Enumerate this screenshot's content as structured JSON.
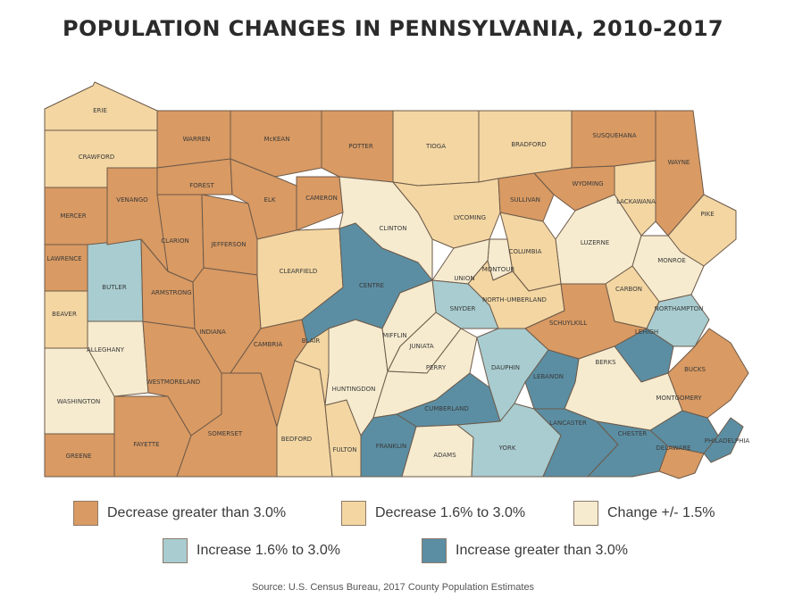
{
  "title": "POPULATION CHANGES IN PENNSYLVANIA, 2010-2017",
  "source": "Source: U.S. Census Bureau, 2017 County Population Estimates",
  "colors": {
    "decrease_gt3": "#d99a63",
    "decrease_1_6_3": "#f3d6a2",
    "change_1_5": "#f6ebcf",
    "increase_1_6_3": "#a8ccd0",
    "increase_gt3": "#5b8ea3"
  },
  "legend": [
    {
      "key": "decrease_gt3",
      "label": "Decrease greater than 3.0%"
    },
    {
      "key": "decrease_1_6_3",
      "label": "Decrease 1.6% to 3.0%"
    },
    {
      "key": "change_1_5",
      "label": "Change +/- 1.5%"
    },
    {
      "key": "increase_1_6_3",
      "label": "Increase 1.6% to 3.0%"
    },
    {
      "key": "increase_gt3",
      "label": "Increase greater than 3.0%"
    }
  ],
  "counties": [
    {
      "name": "ERIE",
      "category": "decrease_1_6_3"
    },
    {
      "name": "CRAWFORD",
      "category": "decrease_1_6_3"
    },
    {
      "name": "MERCER",
      "category": "decrease_gt3"
    },
    {
      "name": "LAWRENCE",
      "category": "decrease_gt3"
    },
    {
      "name": "BEAVER",
      "category": "decrease_1_6_3"
    },
    {
      "name": "WASHINGTON",
      "category": "change_1_5"
    },
    {
      "name": "GREENE",
      "category": "decrease_gt3"
    },
    {
      "name": "BUTLER",
      "category": "increase_1_6_3"
    },
    {
      "name": "ALLEGHANY",
      "category": "change_1_5"
    },
    {
      "name": "FAYETTE",
      "category": "decrease_gt3"
    },
    {
      "name": "WESTMORELAND",
      "category": "decrease_gt3"
    },
    {
      "name": "ARMSTRONG",
      "category": "decrease_gt3"
    },
    {
      "name": "VENANGO",
      "category": "decrease_gt3"
    },
    {
      "name": "CLARION",
      "category": "decrease_gt3"
    },
    {
      "name": "WARREN",
      "category": "decrease_gt3"
    },
    {
      "name": "FOREST",
      "category": "decrease_gt3"
    },
    {
      "name": "JEFFERSON",
      "category": "decrease_gt3"
    },
    {
      "name": "INDIANA",
      "category": "decrease_gt3"
    },
    {
      "name": "SOMERSET",
      "category": "decrease_gt3"
    },
    {
      "name": "McKEAN",
      "category": "decrease_gt3"
    },
    {
      "name": "ELK",
      "category": "decrease_gt3"
    },
    {
      "name": "CAMERON",
      "category": "decrease_gt3"
    },
    {
      "name": "POTTER",
      "category": "decrease_gt3"
    },
    {
      "name": "CLEARFIELD",
      "category": "decrease_1_6_3"
    },
    {
      "name": "CAMBRIA",
      "category": "decrease_gt3"
    },
    {
      "name": "BEDFORD",
      "category": "decrease_1_6_3"
    },
    {
      "name": "BLAIR",
      "category": "decrease_1_6_3"
    },
    {
      "name": "FULTON",
      "category": "decrease_1_6_3"
    },
    {
      "name": "HUNTINGDON",
      "category": "change_1_5"
    },
    {
      "name": "CENTRE",
      "category": "increase_gt3"
    },
    {
      "name": "CLINTON",
      "category": "change_1_5"
    },
    {
      "name": "TIOGA",
      "category": "decrease_1_6_3"
    },
    {
      "name": "BRADFORD",
      "category": "decrease_1_6_3"
    },
    {
      "name": "LYCOMING",
      "category": "decrease_1_6_3"
    },
    {
      "name": "SULLIVAN",
      "category": "decrease_gt3"
    },
    {
      "name": "SUSQUEHANA",
      "category": "decrease_gt3"
    },
    {
      "name": "WYOMING",
      "category": "decrease_gt3"
    },
    {
      "name": "WAYNE",
      "category": "decrease_gt3"
    },
    {
      "name": "LACKAWANA",
      "category": "decrease_1_6_3"
    },
    {
      "name": "PIKE",
      "category": "decrease_1_6_3"
    },
    {
      "name": "LUZERNE",
      "category": "change_1_5"
    },
    {
      "name": "MONROE",
      "category": "change_1_5"
    },
    {
      "name": "COLUMBIA",
      "category": "decrease_1_6_3"
    },
    {
      "name": "MONTOUR",
      "category": "change_1_5"
    },
    {
      "name": "UNION",
      "category": "change_1_5"
    },
    {
      "name": "NORTH-UMBERLAND",
      "category": "decrease_1_6_3"
    },
    {
      "name": "SNYDER",
      "category": "increase_1_6_3"
    },
    {
      "name": "MIFFLIN",
      "category": "change_1_5"
    },
    {
      "name": "JUNIATA",
      "category": "change_1_5"
    },
    {
      "name": "PERRY",
      "category": "change_1_5"
    },
    {
      "name": "CARBON",
      "category": "decrease_1_6_3"
    },
    {
      "name": "SCHUYLKILL",
      "category": "decrease_gt3"
    },
    {
      "name": "NORTHAMPTON",
      "category": "increase_1_6_3"
    },
    {
      "name": "LEHIGH",
      "category": "increase_gt3"
    },
    {
      "name": "BERKS",
      "category": "change_1_5"
    },
    {
      "name": "DAUPHIN",
      "category": "increase_1_6_3"
    },
    {
      "name": "LEBANON",
      "category": "increase_gt3"
    },
    {
      "name": "CUMBERLAND",
      "category": "increase_gt3"
    },
    {
      "name": "FRANKLIN",
      "category": "increase_gt3"
    },
    {
      "name": "ADAMS",
      "category": "change_1_5"
    },
    {
      "name": "YORK",
      "category": "increase_1_6_3"
    },
    {
      "name": "LANCASTER",
      "category": "increase_gt3"
    },
    {
      "name": "CHESTER",
      "category": "increase_gt3"
    },
    {
      "name": "MONTGOMERY",
      "category": "increase_gt3"
    },
    {
      "name": "BUCKS",
      "category": "decrease_gt3"
    },
    {
      "name": "DELAWARE",
      "category": "decrease_gt3"
    },
    {
      "name": "PHILADELPHIA",
      "category": "increase_gt3"
    }
  ]
}
